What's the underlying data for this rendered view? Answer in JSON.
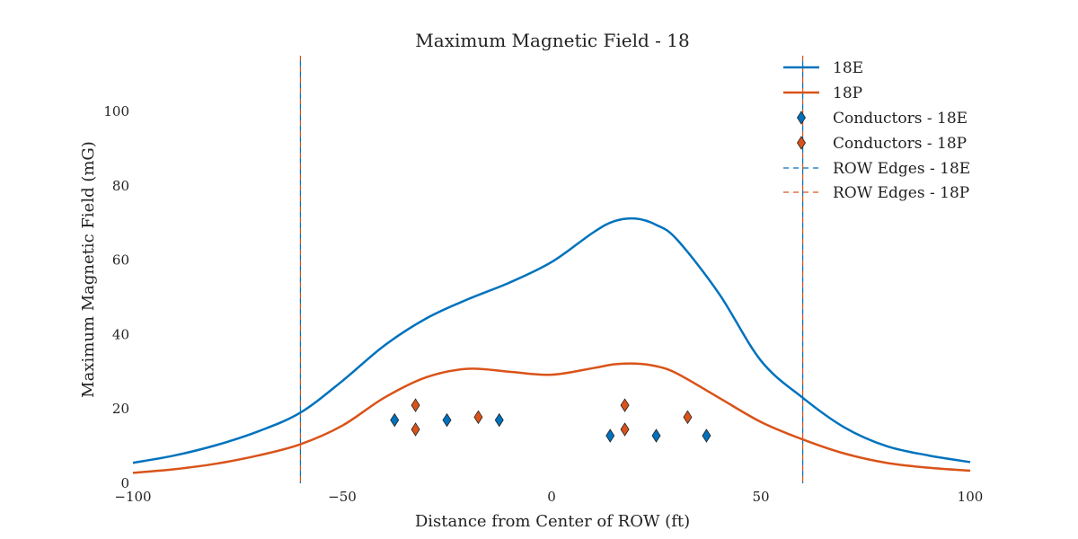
{
  "chart_data": {
    "type": "line",
    "title": "Maximum Magnetic Field - 18",
    "xlabel": "Distance from Center of ROW (ft)",
    "ylabel": "Maximum Magnetic Field (mG)",
    "xlim": [
      -100,
      100
    ],
    "ylim": [
      0,
      115
    ],
    "xticks": [
      -100,
      -50,
      0,
      50,
      100
    ],
    "xtick_labels": [
      "−100",
      "−50",
      "0",
      "50",
      "100"
    ],
    "yticks": [
      0,
      20,
      40,
      60,
      80,
      100
    ],
    "ytick_labels": [
      "0",
      "20",
      "40",
      "60",
      "80",
      "100"
    ],
    "grid": false,
    "legend_position": "top-right",
    "colors": {
      "blue": "#0072bd",
      "orange": "#d95319"
    },
    "series": [
      {
        "name": "18E",
        "kind": "line",
        "color": "#0072bd",
        "x": [
          -100,
          -90,
          -80,
          -70,
          -60,
          -50,
          -40,
          -30,
          -20,
          -10,
          0,
          10,
          15,
          20,
          25,
          30,
          40,
          50,
          60,
          70,
          80,
          90,
          100
        ],
        "y": [
          5.5,
          7.5,
          10.3,
          14.0,
          19.0,
          27.5,
          37.0,
          44.3,
          49.5,
          54.0,
          59.5,
          67.5,
          70.5,
          71.2,
          69.5,
          65.5,
          51.0,
          33.0,
          23.0,
          15.0,
          10.0,
          7.5,
          5.7
        ]
      },
      {
        "name": "18P",
        "kind": "line",
        "color": "#d95319",
        "x": [
          -100,
          -90,
          -80,
          -70,
          -60,
          -50,
          -40,
          -30,
          -20,
          -10,
          0,
          10,
          15,
          20,
          25,
          30,
          40,
          50,
          60,
          70,
          80,
          90,
          100
        ],
        "y": [
          2.8,
          3.8,
          5.3,
          7.5,
          10.5,
          15.5,
          23.0,
          28.5,
          30.8,
          30.0,
          29.2,
          31.0,
          32.0,
          32.2,
          31.5,
          29.5,
          23.0,
          16.5,
          11.8,
          8.0,
          5.5,
          4.2,
          3.4
        ]
      },
      {
        "name": "Conductors - 18E",
        "kind": "scatter",
        "color": "#0072bd",
        "x": [
          -37.5,
          -25,
          -12.5,
          14,
          25,
          37
        ],
        "y": [
          17,
          17,
          17,
          12.8,
          12.8,
          12.8
        ]
      },
      {
        "name": "Conductors - 18P",
        "kind": "scatter",
        "color": "#d95319",
        "x": [
          -32.5,
          -32.5,
          -17.5,
          17.5,
          17.5,
          32.5
        ],
        "y": [
          21,
          14.5,
          17.8,
          21,
          14.5,
          17.8
        ]
      },
      {
        "name": "ROW Edges - 18E",
        "kind": "vline",
        "color": "#0072bd",
        "x": [
          -60,
          60
        ]
      },
      {
        "name": "ROW Edges - 18P",
        "kind": "vline",
        "color": "#d95319",
        "x": [
          -60,
          60
        ]
      }
    ]
  }
}
